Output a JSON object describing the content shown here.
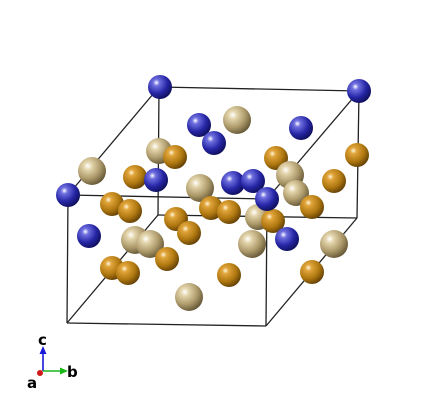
{
  "axes": {
    "a": "a",
    "b": "b",
    "c": "c"
  },
  "colors": {
    "blue": "#2a2aa8",
    "orange": "#b87e14",
    "tan": "#b3a277",
    "axis_a": "#d01818",
    "axis_b": "#18b818",
    "axis_c": "#1818d8",
    "cell": "#000000"
  },
  "atom_types": [
    "blue",
    "orange",
    "tan"
  ]
}
